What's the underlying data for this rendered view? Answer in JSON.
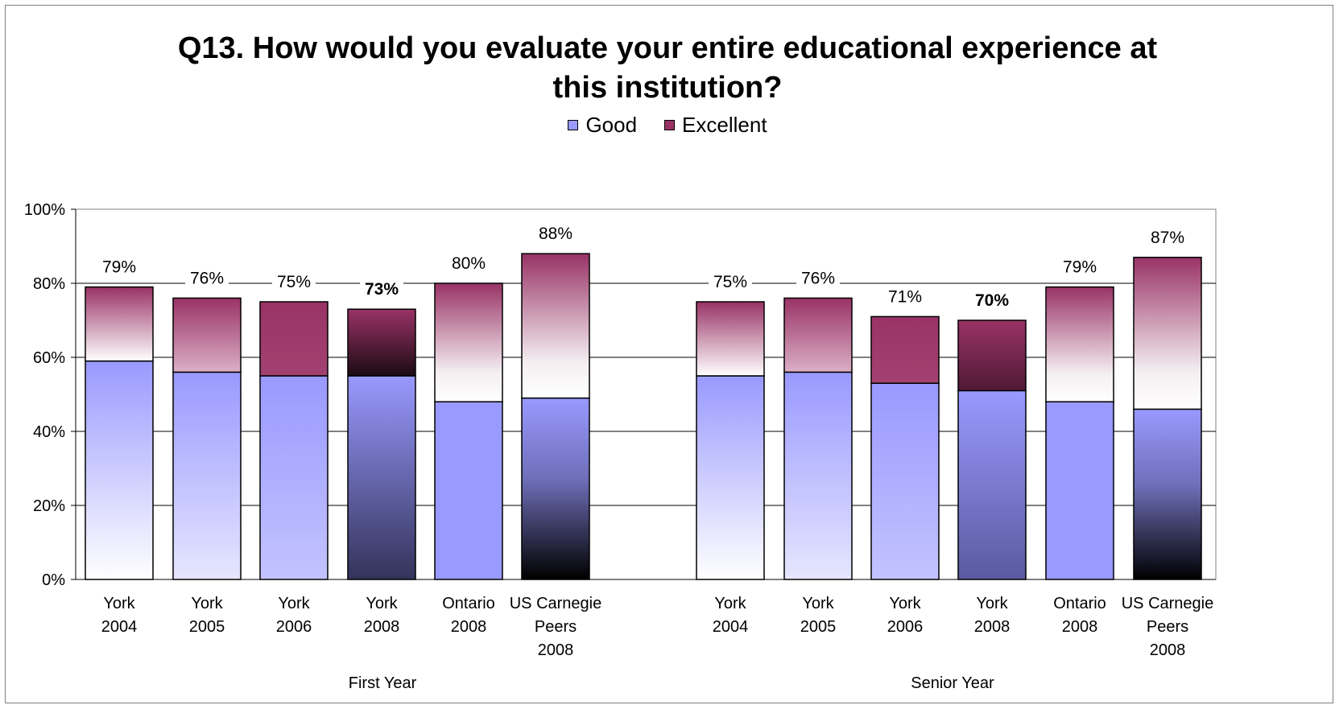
{
  "chart_data": {
    "type": "bar",
    "stacked": true,
    "title": "Q13. How would you evaluate your entire educational experience at this institution?",
    "title_lines": [
      "Q13. How would you evaluate your entire educational experience at",
      "this institution?"
    ],
    "legend": {
      "position": "top",
      "entries": [
        "Good",
        "Excellent"
      ]
    },
    "y_axis": {
      "min": 0,
      "max": 100,
      "ticks": [
        "0%",
        "20%",
        "40%",
        "60%",
        "80%",
        "100%"
      ],
      "gridlines": true
    },
    "groups": [
      {
        "label": "First Year",
        "categories": [
          [
            "York",
            "2004"
          ],
          [
            "York",
            "2005"
          ],
          [
            "York",
            "2006"
          ],
          [
            "York",
            "2008"
          ],
          [
            "Ontario",
            "2008"
          ],
          [
            "US Carnegie",
            "Peers",
            "2008"
          ]
        ],
        "good": [
          59,
          56,
          55,
          55,
          48,
          49
        ],
        "excellent": [
          20,
          20,
          20,
          18,
          32,
          39
        ],
        "totals": [
          "79%",
          "76%",
          "75%",
          "73%",
          "80%",
          "88%"
        ],
        "bold_total_index": 3
      },
      {
        "label": "Senior Year",
        "categories": [
          [
            "York",
            "2004"
          ],
          [
            "York",
            "2005"
          ],
          [
            "York",
            "2006"
          ],
          [
            "York",
            "2008"
          ],
          [
            "Ontario",
            "2008"
          ],
          [
            "US Carnegie",
            "Peers",
            "2008"
          ]
        ],
        "good": [
          55,
          56,
          53,
          51,
          48,
          46
        ],
        "excellent": [
          20,
          20,
          18,
          19,
          31,
          41
        ],
        "totals": [
          "75%",
          "76%",
          "71%",
          "70%",
          "79%",
          "87%"
        ],
        "bold_total_index": 3
      }
    ],
    "colors": {
      "good": "#9999ff",
      "excellent": "#993366"
    }
  }
}
